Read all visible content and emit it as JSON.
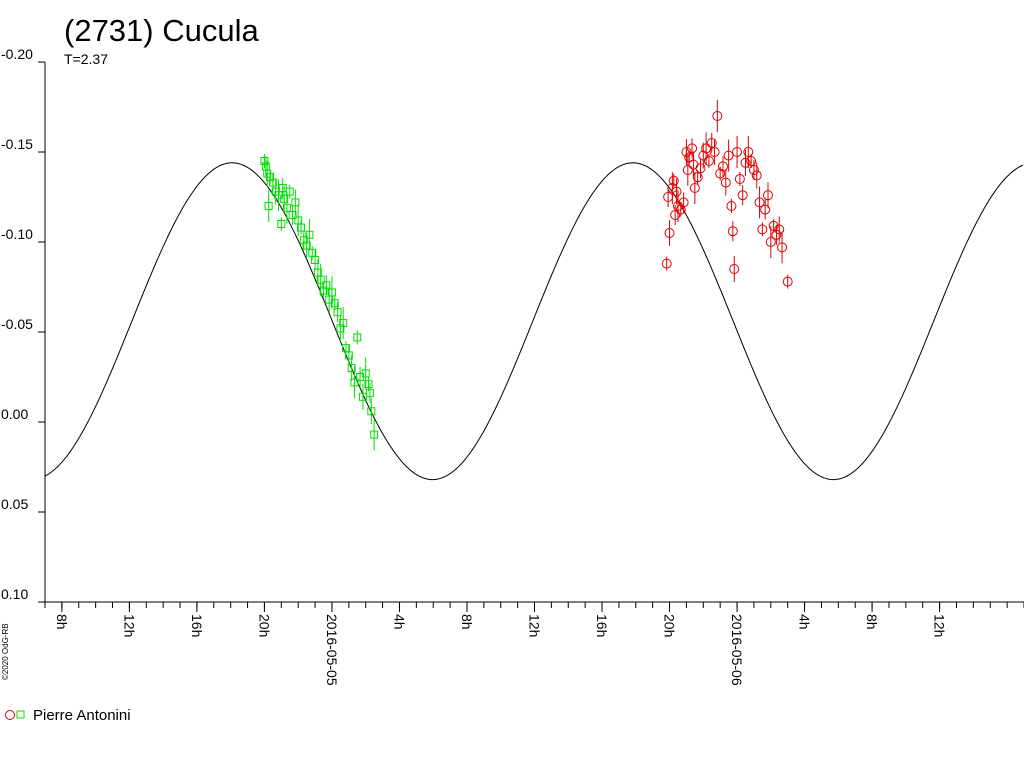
{
  "chart_data": {
    "type": "scatter",
    "title": "(2731) Cucula",
    "subtitle": "T=2.37",
    "copyright": "©2020 OdG-RB",
    "ylim": [
      -0.2,
      0.1
    ],
    "y_inverted": true,
    "y_ticks": [
      "-0.20",
      "-0.15",
      "-0.10",
      "-0.05",
      "0.00",
      "0.05",
      "0.10"
    ],
    "x_range": [
      "2016-05-04 07:00",
      "2016-05-06 17:00"
    ],
    "x_ticks": [
      {
        "label": "8h",
        "t": "2016-05-04 08:00"
      },
      {
        "label": "12h",
        "t": "2016-05-04 12:00"
      },
      {
        "label": "16h",
        "t": "2016-05-04 16:00"
      },
      {
        "label": "20h",
        "t": "2016-05-04 20:00"
      },
      {
        "label": "2016-05-05",
        "t": "2016-05-05 00:00"
      },
      {
        "label": "4h",
        "t": "2016-05-05 04:00"
      },
      {
        "label": "8h",
        "t": "2016-05-05 08:00"
      },
      {
        "label": "12h",
        "t": "2016-05-05 12:00"
      },
      {
        "label": "16h",
        "t": "2016-05-05 16:00"
      },
      {
        "label": "20h",
        "t": "2016-05-05 20:00"
      },
      {
        "label": "2016-05-06",
        "t": "2016-05-06 00:00"
      },
      {
        "label": "4h",
        "t": "2016-05-06 04:00"
      },
      {
        "label": "8h",
        "t": "2016-05-06 08:00"
      },
      {
        "label": "12h",
        "t": "2016-05-06 12:00"
      }
    ],
    "fit_curve": {
      "period_hours": 23.75,
      "amplitude": 0.088,
      "mean": -0.056,
      "max_at": "2016-05-04 18:05"
    },
    "series": [
      {
        "name": "Pierre Antonini",
        "marker": "square",
        "color": "#00e000",
        "points": [
          [
            "2016-05-04 20:00",
            -0.145
          ],
          [
            "2016-05-04 20:05",
            -0.142
          ],
          [
            "2016-05-04 20:10",
            -0.138
          ],
          [
            "2016-05-04 20:15",
            -0.12
          ],
          [
            "2016-05-04 20:20",
            -0.136
          ],
          [
            "2016-05-04 20:30",
            -0.133
          ],
          [
            "2016-05-04 20:40",
            -0.128
          ],
          [
            "2016-05-04 20:50",
            -0.126
          ],
          [
            "2016-05-04 21:00",
            -0.11
          ],
          [
            "2016-05-04 21:05",
            -0.13
          ],
          [
            "2016-05-04 21:10",
            -0.124
          ],
          [
            "2016-05-04 21:20",
            -0.119
          ],
          [
            "2016-05-04 21:30",
            -0.128
          ],
          [
            "2016-05-04 21:40",
            -0.115
          ],
          [
            "2016-05-04 21:50",
            -0.122
          ],
          [
            "2016-05-04 22:00",
            -0.112
          ],
          [
            "2016-05-04 22:10",
            -0.108
          ],
          [
            "2016-05-04 22:20",
            -0.101
          ],
          [
            "2016-05-04 22:30",
            -0.098
          ],
          [
            "2016-05-04 22:40",
            -0.104
          ],
          [
            "2016-05-04 22:50",
            -0.094
          ],
          [
            "2016-05-04 23:00",
            -0.09
          ],
          [
            "2016-05-04 23:10",
            -0.083
          ],
          [
            "2016-05-04 23:20",
            -0.079
          ],
          [
            "2016-05-04 23:30",
            -0.073
          ],
          [
            "2016-05-04 23:40",
            -0.076
          ],
          [
            "2016-05-04 23:50",
            -0.068
          ],
          [
            "2016-05-05 00:00",
            -0.072
          ],
          [
            "2016-05-05 00:10",
            -0.066
          ],
          [
            "2016-05-05 00:20",
            -0.061
          ],
          [
            "2016-05-05 00:30",
            -0.052
          ],
          [
            "2016-05-05 00:40",
            -0.055
          ],
          [
            "2016-05-05 00:50",
            -0.041
          ],
          [
            "2016-05-05 01:00",
            -0.037
          ],
          [
            "2016-05-05 01:10",
            -0.03
          ],
          [
            "2016-05-05 01:20",
            -0.022
          ],
          [
            "2016-05-05 01:30",
            -0.047
          ],
          [
            "2016-05-05 01:40",
            -0.025
          ],
          [
            "2016-05-05 01:50",
            -0.014
          ],
          [
            "2016-05-05 02:00",
            -0.027
          ],
          [
            "2016-05-05 02:10",
            -0.021
          ],
          [
            "2016-05-05 02:15",
            -0.016
          ],
          [
            "2016-05-05 02:20",
            -0.006
          ],
          [
            "2016-05-05 02:30",
            0.007
          ]
        ]
      },
      {
        "name": "Pierre Antonini",
        "marker": "circle",
        "color": "#e00000",
        "points": [
          [
            "2016-05-05 19:50",
            -0.088
          ],
          [
            "2016-05-05 19:55",
            -0.125
          ],
          [
            "2016-05-05 20:00",
            -0.105
          ],
          [
            "2016-05-05 20:10",
            -0.13
          ],
          [
            "2016-05-05 20:15",
            -0.134
          ],
          [
            "2016-05-05 20:20",
            -0.115
          ],
          [
            "2016-05-05 20:25",
            -0.128
          ],
          [
            "2016-05-05 20:30",
            -0.12
          ],
          [
            "2016-05-05 20:40",
            -0.118
          ],
          [
            "2016-05-05 20:50",
            -0.122
          ],
          [
            "2016-05-05 21:00",
            -0.15
          ],
          [
            "2016-05-05 21:05",
            -0.14
          ],
          [
            "2016-05-05 21:10",
            -0.147
          ],
          [
            "2016-05-05 21:20",
            -0.152
          ],
          [
            "2016-05-05 21:25",
            -0.143
          ],
          [
            "2016-05-05 21:30",
            -0.13
          ],
          [
            "2016-05-05 21:40",
            -0.136
          ],
          [
            "2016-05-05 21:50",
            -0.141
          ],
          [
            "2016-05-05 22:00",
            -0.148
          ],
          [
            "2016-05-05 22:10",
            -0.152
          ],
          [
            "2016-05-05 22:20",
            -0.145
          ],
          [
            "2016-05-05 22:30",
            -0.155
          ],
          [
            "2016-05-05 22:40",
            -0.15
          ],
          [
            "2016-05-05 22:50",
            -0.17
          ],
          [
            "2016-05-05 23:00",
            -0.138
          ],
          [
            "2016-05-05 23:10",
            -0.142
          ],
          [
            "2016-05-05 23:20",
            -0.133
          ],
          [
            "2016-05-05 23:30",
            -0.148
          ],
          [
            "2016-05-05 23:40",
            -0.12
          ],
          [
            "2016-05-05 23:45",
            -0.106
          ],
          [
            "2016-05-05 23:50",
            -0.085
          ],
          [
            "2016-05-06 00:00",
            -0.15
          ],
          [
            "2016-05-06 00:10",
            -0.135
          ],
          [
            "2016-05-06 00:20",
            -0.126
          ],
          [
            "2016-05-06 00:30",
            -0.144
          ],
          [
            "2016-05-06 00:40",
            -0.15
          ],
          [
            "2016-05-06 00:50",
            -0.145
          ],
          [
            "2016-05-06 01:00",
            -0.14
          ],
          [
            "2016-05-06 01:10",
            -0.137
          ],
          [
            "2016-05-06 01:20",
            -0.122
          ],
          [
            "2016-05-06 01:30",
            -0.107
          ],
          [
            "2016-05-06 01:40",
            -0.118
          ],
          [
            "2016-05-06 01:50",
            -0.126
          ],
          [
            "2016-05-06 02:00",
            -0.1
          ],
          [
            "2016-05-06 02:10",
            -0.109
          ],
          [
            "2016-05-06 02:20",
            -0.104
          ],
          [
            "2016-05-06 02:30",
            -0.107
          ],
          [
            "2016-05-06 02:40",
            -0.097
          ],
          [
            "2016-05-06 03:00",
            -0.078
          ]
        ]
      }
    ],
    "legend": {
      "label": "Pierre Antonini",
      "placement": "bottom-left"
    }
  }
}
